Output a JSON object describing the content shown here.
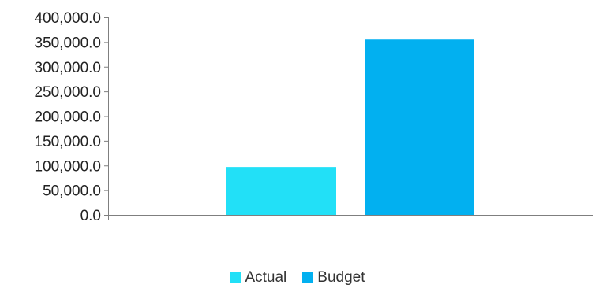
{
  "chart_data": {
    "type": "bar",
    "categories": [
      ""
    ],
    "series": [
      {
        "name": "Actual",
        "values": [
          97000
        ],
        "color": "#22E0F7"
      },
      {
        "name": "Budget",
        "values": [
          355000
        ],
        "color": "#02B0F0"
      }
    ],
    "y_ticks": [
      "0.0",
      "50,000.0",
      "100,000.0",
      "150,000.0",
      "200,000.0",
      "250,000.0",
      "300,000.0",
      "350,000.0",
      "400,000.0"
    ],
    "ylim": [
      0,
      400000
    ],
    "grid": false,
    "legend_position": "bottom-center",
    "title": "",
    "xlabel": "",
    "ylabel": ""
  }
}
